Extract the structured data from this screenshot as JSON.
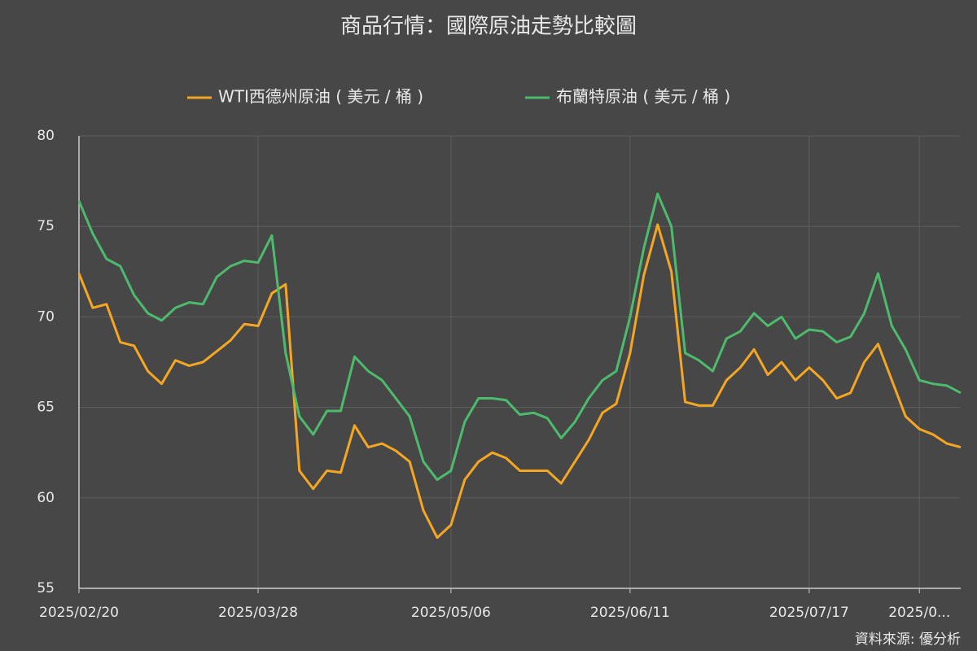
{
  "chart_data": {
    "type": "line",
    "title": "商品行情：國際原油走勢比較圖",
    "source": "資料來源: 優分析",
    "categories": [
      "2025/02/20",
      null,
      null,
      null,
      null,
      null,
      null,
      null,
      null,
      null,
      null,
      null,
      null,
      "2025/03/28",
      null,
      null,
      null,
      null,
      null,
      null,
      null,
      null,
      null,
      null,
      null,
      null,
      null,
      "2025/05/06",
      null,
      null,
      null,
      null,
      null,
      null,
      null,
      null,
      null,
      null,
      null,
      null,
      "2025/06/11",
      null,
      null,
      null,
      null,
      null,
      null,
      null,
      null,
      null,
      null,
      null,
      null,
      "2025/07/17",
      null,
      null,
      null,
      null,
      null,
      null,
      null,
      "2025/0...",
      null,
      null,
      null
    ],
    "series": [
      {
        "name": "WTI西德州原油 ( 美元 / 桶 )",
        "color": "#f5a623",
        "values": [
          72.4,
          70.5,
          70.7,
          68.6,
          68.4,
          67.0,
          66.3,
          67.6,
          67.3,
          67.5,
          68.1,
          68.7,
          69.6,
          69.5,
          71.3,
          71.8,
          61.5,
          60.5,
          61.5,
          61.4,
          64.0,
          62.8,
          63.0,
          62.6,
          62.0,
          59.3,
          57.8,
          58.5,
          61.0,
          62.0,
          62.5,
          62.2,
          61.5,
          61.5,
          61.5,
          60.8,
          62.0,
          63.2,
          64.7,
          65.2,
          68.0,
          72.3,
          75.1,
          72.5,
          65.3,
          65.1,
          65.1,
          66.5,
          67.2,
          68.2,
          66.8,
          67.5,
          66.5,
          67.2,
          66.5,
          65.5,
          65.8,
          67.5,
          68.5,
          66.5,
          64.5,
          63.8,
          63.5,
          63.0,
          62.8
        ]
      },
      {
        "name": "布蘭特原油 ( 美元 / 桶 )",
        "color": "#4cbb6c",
        "values": [
          76.4,
          74.6,
          73.2,
          72.8,
          71.2,
          70.2,
          69.8,
          70.5,
          70.8,
          70.7,
          72.2,
          72.8,
          73.1,
          73.0,
          74.5,
          68.0,
          64.5,
          63.5,
          64.8,
          64.8,
          67.8,
          67.0,
          66.5,
          65.5,
          64.5,
          62.0,
          61.0,
          61.5,
          64.2,
          65.5,
          65.5,
          65.4,
          64.6,
          64.7,
          64.4,
          63.3,
          64.2,
          65.5,
          66.5,
          67.0,
          70.0,
          73.8,
          76.8,
          75.0,
          68.0,
          67.6,
          67.0,
          68.8,
          69.2,
          70.2,
          69.5,
          70.0,
          68.8,
          69.3,
          69.2,
          68.6,
          68.9,
          70.2,
          72.4,
          69.5,
          68.2,
          66.5,
          66.3,
          66.2,
          65.8
        ]
      }
    ],
    "ylim": [
      55,
      80
    ],
    "yticks": [
      55,
      60,
      65,
      70,
      75,
      80
    ],
    "grid": true,
    "legend": "top"
  }
}
